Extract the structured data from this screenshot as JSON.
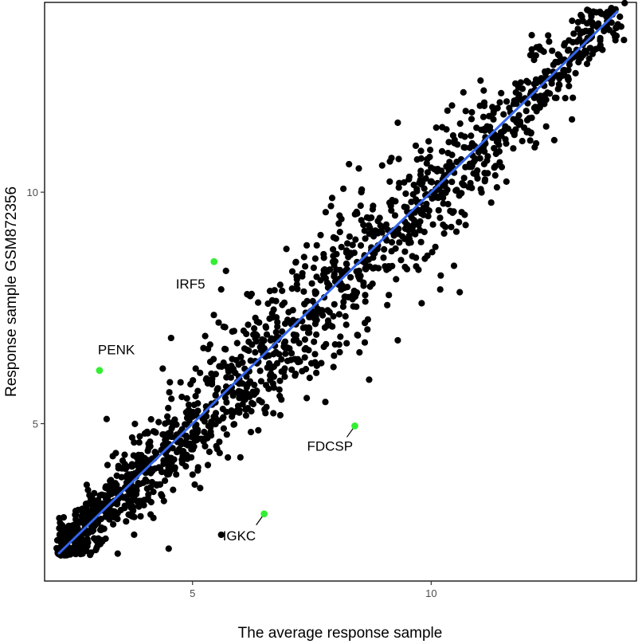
{
  "chart_data": {
    "type": "scatter",
    "title": "",
    "xlabel": "The average response sample",
    "ylabel": "Response sample GSM872356",
    "xlim": [
      1.9,
      14.3
    ],
    "ylim": [
      1.6,
      14.1
    ],
    "x_ticks": [
      5,
      10
    ],
    "y_ticks": [
      5,
      10
    ],
    "grid": false,
    "legend": "none",
    "colors": {
      "points": "#000000",
      "highlight": "#33ee33",
      "fit_line": "#3366ee",
      "panel_border": "#000000"
    },
    "fit_line": {
      "x": [
        2.2,
        13.9
      ],
      "y": [
        2.2,
        13.9
      ]
    },
    "bulk_trend": {
      "slope": 1.0,
      "intercept": 0.0,
      "x_range": [
        2.2,
        13.9
      ],
      "approx_points": 1650
    },
    "highlighted": [
      {
        "label": "IRF5",
        "x": 5.45,
        "y": 8.5
      },
      {
        "label": "PENK",
        "x": 3.05,
        "y": 6.15
      },
      {
        "label": "FDCSP",
        "x": 8.4,
        "y": 4.95
      },
      {
        "label": "IGKC",
        "x": 6.5,
        "y": 3.05
      }
    ],
    "outliers": [
      {
        "x": 4.55,
        "y": 6.85
      },
      {
        "x": 5.7,
        "y": 8.3
      },
      {
        "x": 5.6,
        "y": 7.9
      },
      {
        "x": 9.8,
        "y": 7.6
      },
      {
        "x": 10.2,
        "y": 8.2
      },
      {
        "x": 8.7,
        "y": 5.95
      },
      {
        "x": 9.3,
        "y": 6.8
      },
      {
        "x": 4.5,
        "y": 2.3
      },
      {
        "x": 5.6,
        "y": 2.6
      },
      {
        "x": 3.2,
        "y": 5.1
      },
      {
        "x": 7.9,
        "y": 9.7
      },
      {
        "x": 9.3,
        "y": 11.5
      },
      {
        "x": 11.1,
        "y": 11.9
      },
      {
        "x": 12.0,
        "y": 12.4
      },
      {
        "x": 13.5,
        "y": 13.6
      },
      {
        "x": 13.4,
        "y": 13.9
      }
    ]
  }
}
